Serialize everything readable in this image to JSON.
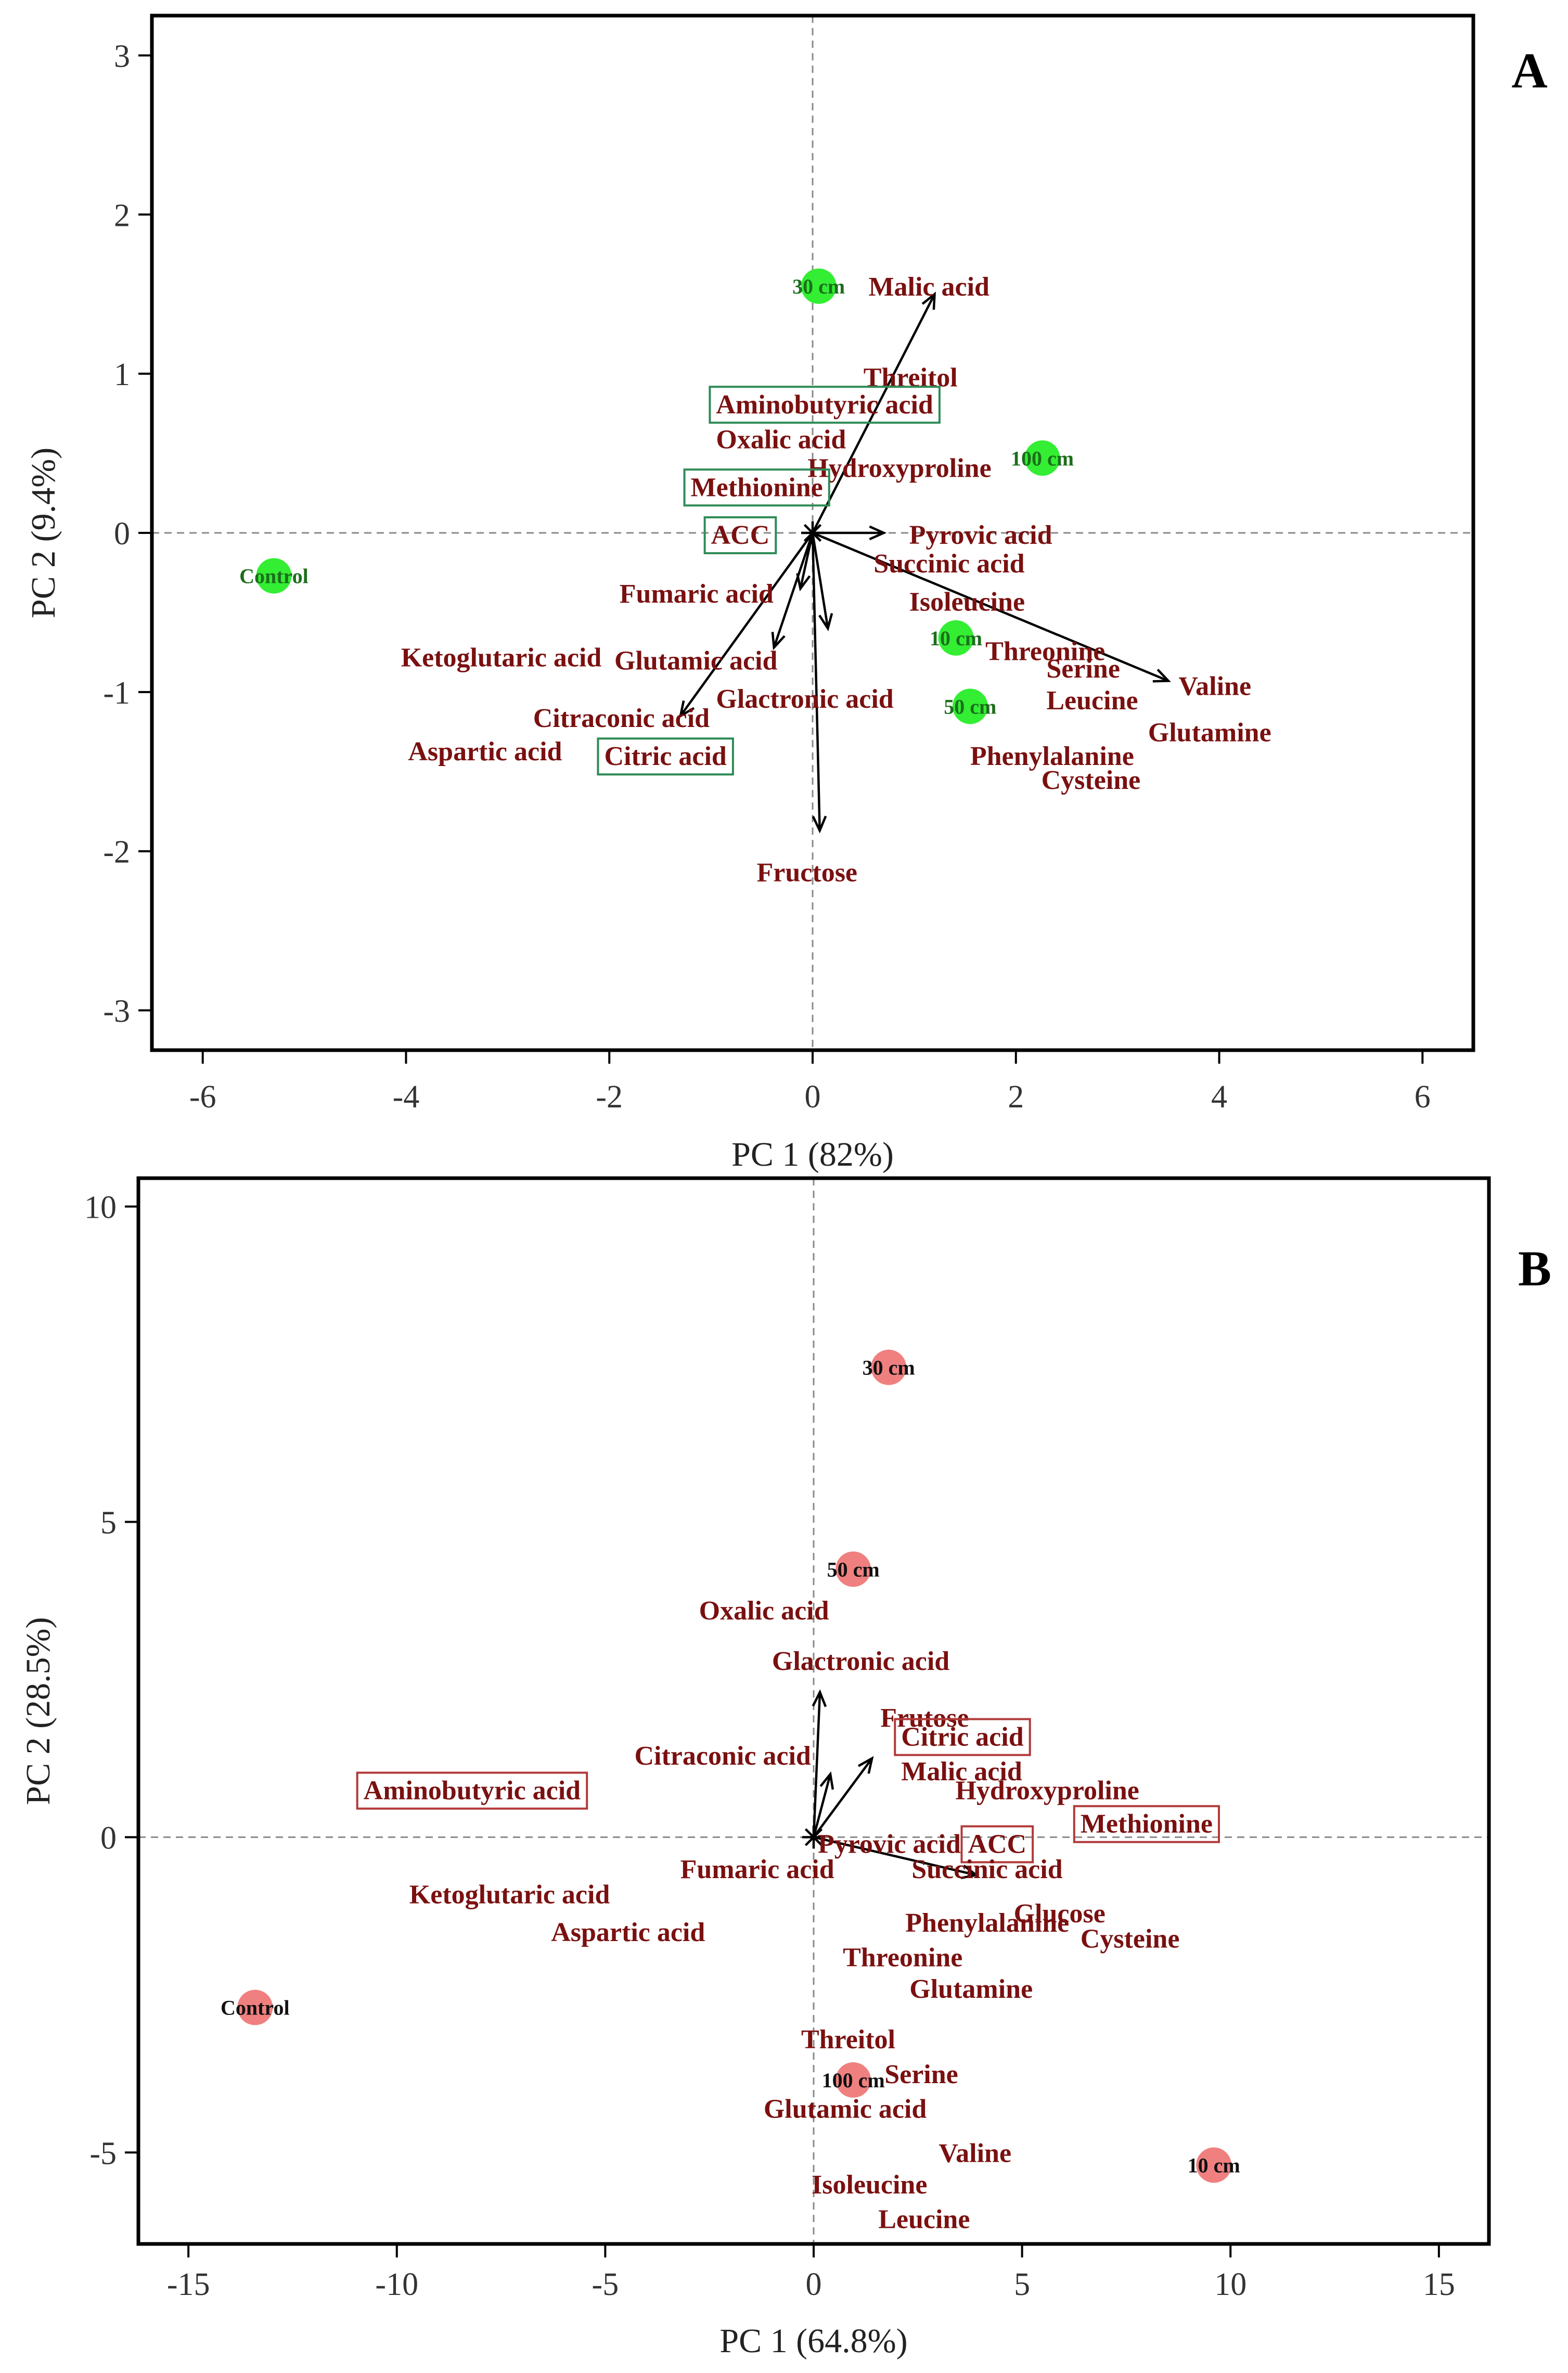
{
  "chart_data": [
    {
      "type": "scatter",
      "panel": "A",
      "xlabel": "PC 1 (82%)",
      "ylabel": "PC 2 (9.4%)",
      "xlim": [
        -6.5,
        6.5
      ],
      "ylim": [
        -3.25,
        3.25
      ],
      "xticks": [
        -6,
        -4,
        -2,
        0,
        2,
        4,
        6
      ],
      "yticks": [
        -3,
        -2,
        -1,
        0,
        1,
        2,
        3
      ],
      "point_color": "#33ee33",
      "sample_label_color": "#1c6e1c",
      "box_color": "#2e8b57",
      "scores": [
        {
          "label": "Control",
          "x": -5.3,
          "y": -0.27
        },
        {
          "label": "30 cm",
          "x": 0.06,
          "y": 1.55
        },
        {
          "label": "100 cm",
          "x": 2.26,
          "y": 0.47
        },
        {
          "label": "10 cm",
          "x": 1.41,
          "y": -0.66
        },
        {
          "label": "50 cm",
          "x": 1.55,
          "y": -1.09
        }
      ],
      "loadings": [
        {
          "label": "Malic acid",
          "x": 0.55,
          "y": 1.55,
          "boxed": false,
          "vector_to": [
            1.2,
            1.5
          ]
        },
        {
          "label": "Threitol",
          "x": 0.5,
          "y": 0.98,
          "boxed": false
        },
        {
          "label": "Aminobutyric acid",
          "x": -0.95,
          "y": 0.81,
          "boxed": true
        },
        {
          "label": "Oxalic acid",
          "x": -0.95,
          "y": 0.59,
          "boxed": false
        },
        {
          "label": "Hydroxyproline",
          "x": -0.05,
          "y": 0.41,
          "boxed": false
        },
        {
          "label": "Methionine",
          "x": -1.2,
          "y": 0.29,
          "boxed": true
        },
        {
          "label": "ACC",
          "x": -1.0,
          "y": -0.01,
          "boxed": true
        },
        {
          "label": "Pyrovic acid",
          "x": 0.95,
          "y": -0.01,
          "boxed": false,
          "vector_to": [
            0.7,
            0.0
          ]
        },
        {
          "label": "Succinic acid",
          "x": 0.6,
          "y": -0.19,
          "boxed": false
        },
        {
          "label": "Fumaric acid",
          "x": -1.9,
          "y": -0.38,
          "boxed": false,
          "vector_to": [
            -0.12,
            -0.35
          ]
        },
        {
          "label": "Isoleucine",
          "x": 0.95,
          "y": -0.43,
          "boxed": false
        },
        {
          "label": "Ketoglutaric acid",
          "x": -4.05,
          "y": -0.78,
          "boxed": false
        },
        {
          "label": "Glutamic acid",
          "x": -1.95,
          "y": -0.8,
          "boxed": false,
          "vector_to": [
            -0.38,
            -0.72
          ]
        },
        {
          "label": "Threonine",
          "x": 1.7,
          "y": -0.74,
          "boxed": false
        },
        {
          "label": "Serine",
          "x": 2.3,
          "y": -0.85,
          "boxed": false
        },
        {
          "label": "Valine",
          "x": 3.6,
          "y": -0.96,
          "boxed": false,
          "vector_to": [
            3.5,
            -0.93
          ]
        },
        {
          "label": "Citraconic acid",
          "x": -2.75,
          "y": -1.16,
          "boxed": false,
          "vector_to": [
            -1.3,
            -1.15
          ]
        },
        {
          "label": "Glactronic acid",
          "x": -0.95,
          "y": -1.04,
          "boxed": false,
          "vector_to": [
            0.15,
            -0.6
          ]
        },
        {
          "label": "Leucine",
          "x": 2.3,
          "y": -1.05,
          "boxed": false
        },
        {
          "label": "Glutamine",
          "x": 3.3,
          "y": -1.25,
          "boxed": false
        },
        {
          "label": "Aspartic acid",
          "x": -3.98,
          "y": -1.37,
          "boxed": false
        },
        {
          "label": "Citric acid",
          "x": -2.05,
          "y": -1.4,
          "boxed": true
        },
        {
          "label": "Phenylalanine",
          "x": 1.55,
          "y": -1.4,
          "boxed": false
        },
        {
          "label": "Cysteine",
          "x": 2.25,
          "y": -1.55,
          "boxed": false
        },
        {
          "label": "Fructose",
          "x": -0.55,
          "y": -2.13,
          "boxed": false,
          "vector_to": [
            0.07,
            -1.87
          ]
        }
      ]
    },
    {
      "type": "scatter",
      "panel": "B",
      "xlabel": "PC 1 (64.8%)",
      "ylabel": "PC 2 (28.5%)",
      "xlim": [
        -16.2,
        16.2
      ],
      "ylim": [
        -6.45,
        10.45
      ],
      "xticks": [
        -15,
        -10,
        -5,
        0,
        5,
        10,
        15
      ],
      "yticks": [
        -5,
        0,
        5,
        10
      ],
      "point_color": "#f08080",
      "sample_label_color": "#111111",
      "box_color": "#b23a3a",
      "scores": [
        {
          "label": "Control",
          "x": -13.4,
          "y": -2.7
        },
        {
          "label": "30 cm",
          "x": 1.8,
          "y": 7.45
        },
        {
          "label": "50 cm",
          "x": 0.95,
          "y": 4.25
        },
        {
          "label": "100 cm",
          "x": 0.95,
          "y": -3.85
        },
        {
          "label": "10 cm",
          "x": 9.6,
          "y": -5.2
        }
      ],
      "loadings": [
        {
          "label": "Oxalic acid",
          "x": -2.75,
          "y": 3.6,
          "boxed": false
        },
        {
          "label": "Glactronic acid",
          "x": -1.0,
          "y": 2.8,
          "boxed": false,
          "vector_to": [
            0.15,
            2.3
          ]
        },
        {
          "label": "Frutose",
          "x": 1.6,
          "y": 1.9,
          "boxed": false
        },
        {
          "label": "Citric acid",
          "x": 2.1,
          "y": 1.6,
          "boxed": true
        },
        {
          "label": "Citraconic acid",
          "x": -4.3,
          "y": 1.3,
          "boxed": false,
          "vector_to": [
            0.4,
            1.0
          ]
        },
        {
          "label": "Malic acid",
          "x": 2.1,
          "y": 1.05,
          "boxed": false,
          "vector_to": [
            1.4,
            1.25
          ]
        },
        {
          "label": "Aminobutyric acid",
          "x": -10.8,
          "y": 0.75,
          "boxed": true
        },
        {
          "label": "Hydroxyproline",
          "x": 3.4,
          "y": 0.75,
          "boxed": false
        },
        {
          "label": "Methionine",
          "x": 6.4,
          "y": 0.22,
          "boxed": true
        },
        {
          "label": "Pyrovic acid",
          "x": 0.1,
          "y": -0.1,
          "boxed": false
        },
        {
          "label": "ACC",
          "x": 3.7,
          "y": -0.1,
          "boxed": true
        },
        {
          "label": "Fumaric acid",
          "x": -3.2,
          "y": -0.5,
          "boxed": false
        },
        {
          "label": "Succinic acid",
          "x": 2.35,
          "y": -0.5,
          "boxed": false,
          "vector_to": [
            3.9,
            -0.6
          ]
        },
        {
          "label": "Ketoglutaric acid",
          "x": -9.7,
          "y": -0.9,
          "boxed": false
        },
        {
          "label": "Glucose",
          "x": 4.8,
          "y": -1.2,
          "boxed": false
        },
        {
          "label": "Phenylalanine",
          "x": 2.2,
          "y": -1.35,
          "boxed": false
        },
        {
          "label": "Aspartic acid",
          "x": -6.3,
          "y": -1.5,
          "boxed": false
        },
        {
          "label": "Cysteine",
          "x": 6.4,
          "y": -1.6,
          "boxed": false
        },
        {
          "label": "Threonine",
          "x": 0.7,
          "y": -1.9,
          "boxed": false
        },
        {
          "label": "Glutamine",
          "x": 2.3,
          "y": -2.4,
          "boxed": false
        },
        {
          "label": "Threitol",
          "x": -0.3,
          "y": -3.2,
          "boxed": false
        },
        {
          "label": "Serine",
          "x": 1.7,
          "y": -3.75,
          "boxed": false
        },
        {
          "label": "Glutamic acid",
          "x": -1.2,
          "y": -4.3,
          "boxed": false
        },
        {
          "label": "Valine",
          "x": 3.0,
          "y": -5.0,
          "boxed": false
        },
        {
          "label": "Isoleucine",
          "x": -0.05,
          "y": -5.5,
          "boxed": false
        },
        {
          "label": "Leucine",
          "x": 1.55,
          "y": -6.05,
          "boxed": false
        }
      ]
    }
  ]
}
